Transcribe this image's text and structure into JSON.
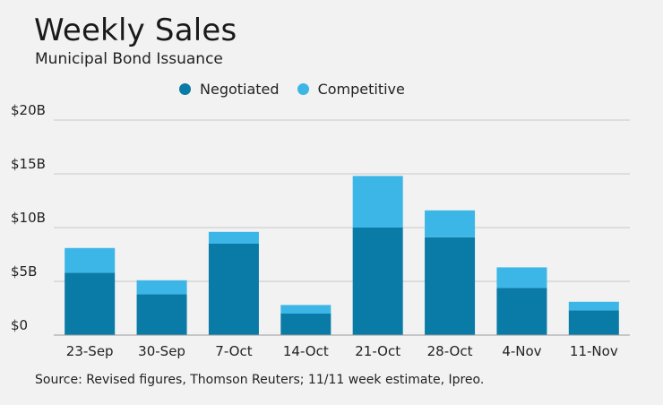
{
  "title": "Weekly Sales",
  "subtitle": "Municipal Bond Issuance",
  "source": "Source: Revised figures, Thomson Reuters; 11/11 week estimate, Ipreo.",
  "colors": {
    "negotiated": "#0a7aa6",
    "competitive": "#3cb6e6",
    "grid": "#c8c8c8"
  },
  "chart_data": {
    "type": "bar",
    "stacked": true,
    "categories": [
      "23-Sep",
      "30-Sep",
      "7-Oct",
      "14-Oct",
      "21-Oct",
      "28-Oct",
      "4-Nov",
      "11-Nov"
    ],
    "series": [
      {
        "name": "Negotiated",
        "values": [
          5.8,
          3.8,
          8.5,
          2.0,
          10.0,
          9.1,
          4.4,
          2.3
        ]
      },
      {
        "name": "Competitive",
        "values": [
          2.3,
          1.3,
          1.1,
          0.8,
          4.8,
          2.5,
          1.9,
          0.8
        ]
      }
    ],
    "yticks": [
      0,
      5,
      10,
      15,
      20
    ],
    "ytick_labels": [
      "$0",
      "$5B",
      "$10B",
      "$15B",
      "$20B"
    ],
    "ylim": [
      0,
      20
    ],
    "grid": true,
    "legend_position": "top-center"
  }
}
